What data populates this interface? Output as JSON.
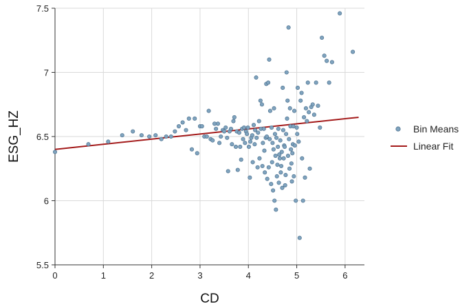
{
  "chart_data": {
    "type": "scatter",
    "xlabel": "CD",
    "ylabel": "ESG_HZ",
    "xlim": [
      0,
      6.4
    ],
    "ylim": [
      5.5,
      7.5
    ],
    "x_ticks": [
      "0",
      "1",
      "2",
      "3",
      "4",
      "5",
      "6"
    ],
    "y_ticks": [
      "5.5",
      "6",
      "6.5",
      "7",
      "7.5"
    ],
    "x_tick_values": [
      0,
      1,
      2,
      3,
      4,
      5,
      6
    ],
    "y_tick_values": [
      5.5,
      6,
      6.5,
      7,
      7.5
    ],
    "grid": true,
    "legend_position": "right",
    "colors": {
      "points": "#7fa3be",
      "point_edge": "#4f7390",
      "fit": "#a31919",
      "grid": "#d9d9d9"
    },
    "series": [
      {
        "name": "Bin Means",
        "kind": "scatter",
        "points": [
          [
            0.0,
            6.38
          ],
          [
            0.69,
            6.44
          ],
          [
            1.1,
            6.46
          ],
          [
            1.39,
            6.51
          ],
          [
            1.61,
            6.54
          ],
          [
            1.79,
            6.51
          ],
          [
            1.95,
            6.5
          ],
          [
            2.08,
            6.51
          ],
          [
            2.2,
            6.48
          ],
          [
            2.3,
            6.5
          ],
          [
            2.4,
            6.5
          ],
          [
            2.48,
            6.54
          ],
          [
            2.56,
            6.58
          ],
          [
            2.64,
            6.61
          ],
          [
            2.71,
            6.55
          ],
          [
            2.77,
            6.64
          ],
          [
            2.83,
            6.4
          ],
          [
            2.89,
            6.64
          ],
          [
            2.94,
            6.37
          ],
          [
            3.0,
            6.58
          ],
          [
            3.04,
            6.58
          ],
          [
            3.09,
            6.5
          ],
          [
            3.14,
            6.5
          ],
          [
            3.18,
            6.7
          ],
          [
            3.22,
            6.48
          ],
          [
            3.26,
            6.47
          ],
          [
            3.3,
            6.6
          ],
          [
            3.33,
            6.56
          ],
          [
            3.37,
            6.6
          ],
          [
            3.4,
            6.45
          ],
          [
            3.43,
            6.5
          ],
          [
            3.47,
            6.55
          ],
          [
            3.5,
            6.54
          ],
          [
            3.53,
            6.57
          ],
          [
            3.56,
            6.49
          ],
          [
            3.58,
            6.23
          ],
          [
            3.61,
            6.54
          ],
          [
            3.64,
            6.56
          ],
          [
            3.66,
            6.44
          ],
          [
            3.69,
            6.62
          ],
          [
            3.71,
            6.65
          ],
          [
            3.74,
            6.42
          ],
          [
            3.76,
            6.54
          ],
          [
            3.78,
            6.24
          ],
          [
            3.81,
            6.53
          ],
          [
            3.83,
            6.42
          ],
          [
            3.85,
            6.32
          ],
          [
            3.87,
            6.56
          ],
          [
            3.89,
            6.48
          ],
          [
            3.91,
            6.57
          ],
          [
            3.93,
            6.45
          ],
          [
            3.95,
            6.54
          ],
          [
            3.97,
            6.52
          ],
          [
            3.99,
            6.57
          ],
          [
            4.01,
            6.42
          ],
          [
            4.03,
            6.18
          ],
          [
            4.04,
            6.46
          ],
          [
            4.06,
            6.49
          ],
          [
            4.08,
            6.51
          ],
          [
            4.09,
            6.3
          ],
          [
            4.11,
            6.59
          ],
          [
            4.13,
            6.44
          ],
          [
            4.14,
            6.55
          ],
          [
            4.16,
            6.96
          ],
          [
            4.17,
            6.49
          ],
          [
            4.19,
            6.26
          ],
          [
            4.2,
            6.53
          ],
          [
            4.22,
            6.62
          ],
          [
            4.23,
            6.33
          ],
          [
            4.25,
            6.78
          ],
          [
            4.26,
            6.56
          ],
          [
            4.28,
            6.75
          ],
          [
            4.29,
            6.27
          ],
          [
            4.3,
            6.45
          ],
          [
            4.32,
            6.56
          ],
          [
            4.33,
            6.39
          ],
          [
            4.34,
            6.22
          ],
          [
            4.36,
            6.49
          ],
          [
            4.37,
            6.91
          ],
          [
            4.38,
            6.5
          ],
          [
            4.39,
            6.17
          ],
          [
            4.41,
            6.92
          ],
          [
            4.42,
            6.26
          ],
          [
            4.43,
            7.1
          ],
          [
            4.44,
            6.48
          ],
          [
            4.45,
            6.7
          ],
          [
            4.47,
            6.13
          ],
          [
            4.48,
            6.57
          ],
          [
            4.49,
            6.3
          ],
          [
            4.5,
            6.45
          ],
          [
            4.51,
            6.08
          ],
          [
            4.52,
            6.4
          ],
          [
            4.53,
            6.72
          ],
          [
            4.54,
            6.0
          ],
          [
            4.55,
            6.52
          ],
          [
            4.56,
            6.35
          ],
          [
            4.57,
            5.93
          ],
          [
            4.58,
            6.49
          ],
          [
            4.59,
            6.19
          ],
          [
            4.6,
            6.28
          ],
          [
            4.61,
            6.42
          ],
          [
            4.62,
            6.56
          ],
          [
            4.63,
            6.14
          ],
          [
            4.64,
            6.36
          ],
          [
            4.65,
            6.33
          ],
          [
            4.66,
            6.47
          ],
          [
            4.67,
            6.22
          ],
          [
            4.68,
            6.27
          ],
          [
            4.69,
            6.38
          ],
          [
            4.7,
            6.1
          ],
          [
            4.71,
            6.88
          ],
          [
            4.72,
            6.55
          ],
          [
            4.73,
            6.33
          ],
          [
            4.74,
            6.43
          ],
          [
            4.75,
            6.42
          ],
          [
            4.76,
            6.12
          ],
          [
            4.77,
            6.2
          ],
          [
            4.78,
            6.52
          ],
          [
            4.79,
            7.0
          ],
          [
            4.8,
            6.64
          ],
          [
            4.81,
            6.78
          ],
          [
            4.82,
            6.35
          ],
          [
            4.83,
            7.35
          ],
          [
            4.84,
            6.48
          ],
          [
            4.85,
            6.25
          ],
          [
            4.86,
            6.72
          ],
          [
            4.87,
            6.58
          ],
          [
            4.88,
            6.4
          ],
          [
            4.89,
            6.29
          ],
          [
            4.9,
            6.15
          ],
          [
            4.91,
            6.37
          ],
          [
            4.92,
            6.44
          ],
          [
            4.93,
            6.58
          ],
          [
            4.94,
            6.19
          ],
          [
            4.95,
            6.7
          ],
          [
            4.96,
            6.43
          ],
          [
            4.98,
            6.0
          ],
          [
            5.0,
            6.57
          ],
          [
            5.01,
            6.52
          ],
          [
            5.02,
            6.88
          ],
          [
            5.04,
            6.46
          ],
          [
            5.06,
            5.71
          ],
          [
            5.08,
            6.78
          ],
          [
            5.1,
            6.84
          ],
          [
            5.11,
            6.33
          ],
          [
            5.13,
            6.0
          ],
          [
            5.15,
            6.65
          ],
          [
            5.17,
            6.18
          ],
          [
            5.19,
            6.72
          ],
          [
            5.21,
            6.62
          ],
          [
            5.23,
            6.92
          ],
          [
            5.25,
            6.69
          ],
          [
            5.27,
            6.25
          ],
          [
            5.3,
            6.73
          ],
          [
            5.33,
            6.75
          ],
          [
            5.36,
            6.67
          ],
          [
            5.4,
            6.92
          ],
          [
            5.44,
            6.74
          ],
          [
            5.48,
            6.57
          ],
          [
            5.52,
            7.27
          ],
          [
            5.57,
            7.13
          ],
          [
            5.62,
            7.09
          ],
          [
            5.67,
            6.92
          ],
          [
            5.73,
            7.08
          ],
          [
            5.89,
            7.46
          ],
          [
            6.16,
            7.16
          ]
        ]
      },
      {
        "name": "Linear Fit",
        "kind": "line",
        "x": [
          0,
          6.28
        ],
        "y": [
          6.4,
          6.65
        ]
      }
    ]
  }
}
